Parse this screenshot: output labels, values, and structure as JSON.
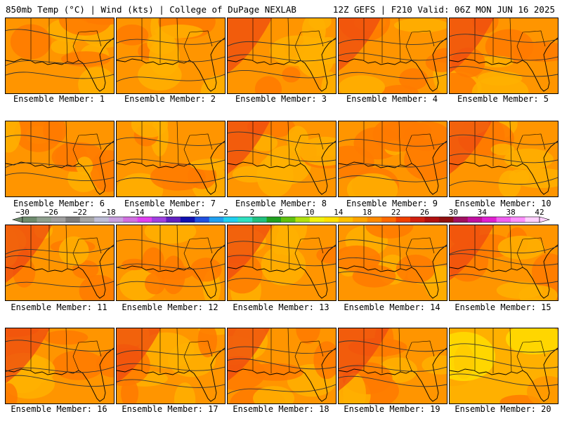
{
  "header": {
    "left": "850mb Temp (°C) | Wind (kts) | College of DuPage NEXLAB",
    "right": "12Z GEFS | F210 Valid: 06Z MON JUN 16 2025"
  },
  "member_prefix": "Ensemble Member: ",
  "members": [
    {
      "num": "1",
      "warmth": 0.45
    },
    {
      "num": "2",
      "warmth": 0.45
    },
    {
      "num": "3",
      "warmth": 0.55
    },
    {
      "num": "4",
      "warmth": 0.5
    },
    {
      "num": "5",
      "warmth": 0.55
    },
    {
      "num": "6",
      "warmth": 0.4
    },
    {
      "num": "7",
      "warmth": 0.35
    },
    {
      "num": "8",
      "warmth": 0.5
    },
    {
      "num": "9",
      "warmth": 0.35
    },
    {
      "num": "10",
      "warmth": 0.5
    },
    {
      "num": "11",
      "warmth": 0.6
    },
    {
      "num": "12",
      "warmth": 0.45
    },
    {
      "num": "13",
      "warmth": 0.55
    },
    {
      "num": "14",
      "warmth": 0.45
    },
    {
      "num": "15",
      "warmth": 0.55
    },
    {
      "num": "16",
      "warmth": 0.55
    },
    {
      "num": "17",
      "warmth": 0.55
    },
    {
      "num": "18",
      "warmth": 0.5
    },
    {
      "num": "19",
      "warmth": 0.7
    },
    {
      "num": "20",
      "warmth": 0.2
    }
  ],
  "colorbar": {
    "labels": [
      "−30",
      "−26",
      "−22",
      "−18",
      "−14",
      "−10",
      "−6",
      "−2",
      "2",
      "6",
      "10",
      "14",
      "18",
      "22",
      "26",
      "30",
      "34",
      "38",
      "42"
    ],
    "colors": [
      "#6e8c6e",
      "#8ea08e",
      "#a0a0a0",
      "#7e7e7e",
      "#a6a6a6",
      "#bdbdd6",
      "#c8a0e0",
      "#d070e0",
      "#e040f0",
      "#a040e0",
      "#6020c0",
      "#1010b0",
      "#2050e0",
      "#20a0f0",
      "#20d0f0",
      "#30e0c0",
      "#20c080",
      "#20a020",
      "#60c010",
      "#b0e010",
      "#f0f010",
      "#ffe000",
      "#ffc000",
      "#ffa500",
      "#ff8a00",
      "#ff6a00",
      "#f04000",
      "#d02010",
      "#b01010",
      "#901010",
      "#a01060",
      "#c010a0",
      "#e020d0",
      "#f060f0",
      "#ff90ff",
      "#ffd0ff"
    ]
  },
  "colors": {
    "orange_light": "#ffb000",
    "orange_mid": "#ff9500",
    "orange_dark": "#ff7a00",
    "red": "#ee4a10",
    "yellow": "#ffe000",
    "line": "#333333"
  }
}
